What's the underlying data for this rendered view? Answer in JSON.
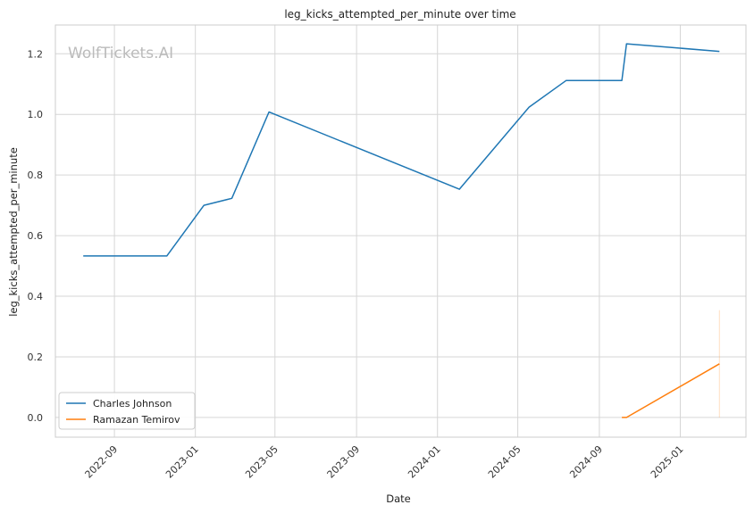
{
  "chart_data": {
    "type": "line",
    "title": "leg_kicks_attempted_per_minute over time",
    "xlabel": "Date",
    "ylabel": "leg_kicks_attempted_per_minute",
    "watermark": "WolfTickets.AI",
    "x_ticks": [
      "2022-09",
      "2023-01",
      "2023-05",
      "2023-09",
      "2024-01",
      "2024-05",
      "2024-09",
      "2025-01"
    ],
    "y_ticks": [
      0.0,
      0.2,
      0.4,
      0.6,
      0.8,
      1.0,
      1.2
    ],
    "ylim": [
      -0.065,
      1.295
    ],
    "xlim": [
      "2022-06-04",
      "2025-04-10"
    ],
    "grid": true,
    "legend_position": "bottom-left",
    "series": [
      {
        "name": "Charles Johnson",
        "color": "#1f77b4",
        "points": [
          {
            "x": "2022-07-16",
            "y": 0.533
          },
          {
            "x": "2022-11-19",
            "y": 0.533
          },
          {
            "x": "2023-01-14",
            "y": 0.7
          },
          {
            "x": "2023-02-25",
            "y": 0.723
          },
          {
            "x": "2023-04-22",
            "y": 1.008
          },
          {
            "x": "2024-02-03",
            "y": 0.753
          },
          {
            "x": "2024-05-18",
            "y": 1.024
          },
          {
            "x": "2024-07-13",
            "y": 1.112
          },
          {
            "x": "2024-10-05",
            "y": 1.112
          },
          {
            "x": "2024-10-12",
            "y": 1.233
          },
          {
            "x": "2025-03-01",
            "y": 1.208
          }
        ]
      },
      {
        "name": "Ramazan Temirov",
        "color": "#ff7f0e",
        "points": [
          {
            "x": "2024-10-05",
            "y": 0.0
          },
          {
            "x": "2024-10-12",
            "y": 0.0
          },
          {
            "x": "2025-03-01",
            "y": 0.177
          }
        ],
        "band": {
          "x": "2025-03-01",
          "low": 0.0,
          "high": 0.354
        }
      }
    ]
  }
}
